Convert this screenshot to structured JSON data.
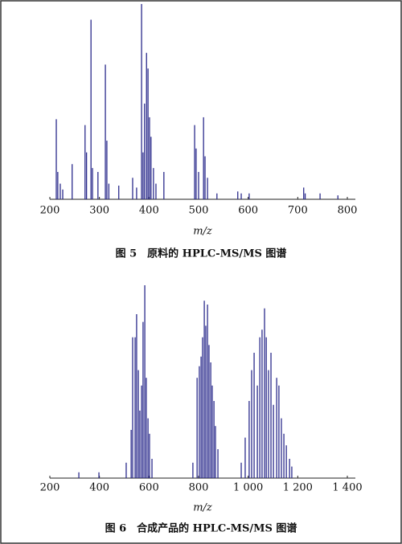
{
  "chart_data": [
    {
      "type": "bar",
      "title": "图 5　原料的 HPLC-MS/MS 图谱",
      "x_label": "m/z",
      "color": "#2b2b8c",
      "x": [
        213,
        216,
        221,
        226,
        245,
        271,
        274,
        283,
        286,
        297,
        312,
        315,
        319,
        339,
        367,
        375,
        385,
        388,
        391,
        395,
        398,
        401,
        404,
        409,
        414,
        430,
        492,
        495,
        500,
        510,
        513,
        518,
        537,
        579,
        586,
        602,
        712,
        715,
        745,
        781
      ],
      "values": [
        41,
        14,
        8,
        5,
        18,
        38,
        24,
        92,
        16,
        14,
        69,
        30,
        8,
        7,
        11,
        6,
        100,
        24,
        49,
        75,
        67,
        42,
        32,
        16,
        8,
        14,
        38,
        26,
        14,
        42,
        22,
        11,
        3,
        4,
        3,
        3,
        6,
        3,
        3,
        2
      ],
      "xlim": [
        200,
        800
      ],
      "xticks": [
        200,
        300,
        400,
        500,
        600,
        700,
        800
      ],
      "ylim": [
        0,
        100
      ]
    },
    {
      "type": "bar",
      "title": "图 6　合成产品的 HPLC-MS/MS 图谱",
      "x_label": "m/z",
      "color": "#2b2b8c",
      "x": [
        317,
        398,
        508,
        528,
        534,
        544,
        550,
        557,
        563,
        570,
        576,
        583,
        589,
        596,
        602,
        612,
        777,
        794,
        803,
        810,
        816,
        823,
        829,
        836,
        842,
        849,
        855,
        862,
        868,
        878,
        972,
        988,
        1004,
        1014,
        1024,
        1037,
        1047,
        1056,
        1066,
        1073,
        1082,
        1092,
        1102,
        1115,
        1124,
        1134,
        1144,
        1154,
        1167,
        1176
      ],
      "values": [
        3,
        3,
        8,
        25,
        73,
        73,
        85,
        56,
        35,
        48,
        81,
        100,
        52,
        31,
        23,
        10,
        8,
        52,
        58,
        63,
        73,
        92,
        79,
        90,
        69,
        60,
        48,
        40,
        27,
        15,
        8,
        21,
        40,
        56,
        65,
        48,
        73,
        77,
        88,
        73,
        56,
        65,
        38,
        52,
        48,
        31,
        23,
        17,
        10,
        6
      ],
      "xlim": [
        200,
        1400
      ],
      "xticks": [
        200,
        400,
        600,
        800,
        {
          "value": 1000,
          "label": "1 000"
        },
        {
          "value": 1200,
          "label": "1 200"
        },
        {
          "value": 1400,
          "label": "1 400"
        }
      ],
      "ylim": [
        0,
        100
      ]
    }
  ]
}
